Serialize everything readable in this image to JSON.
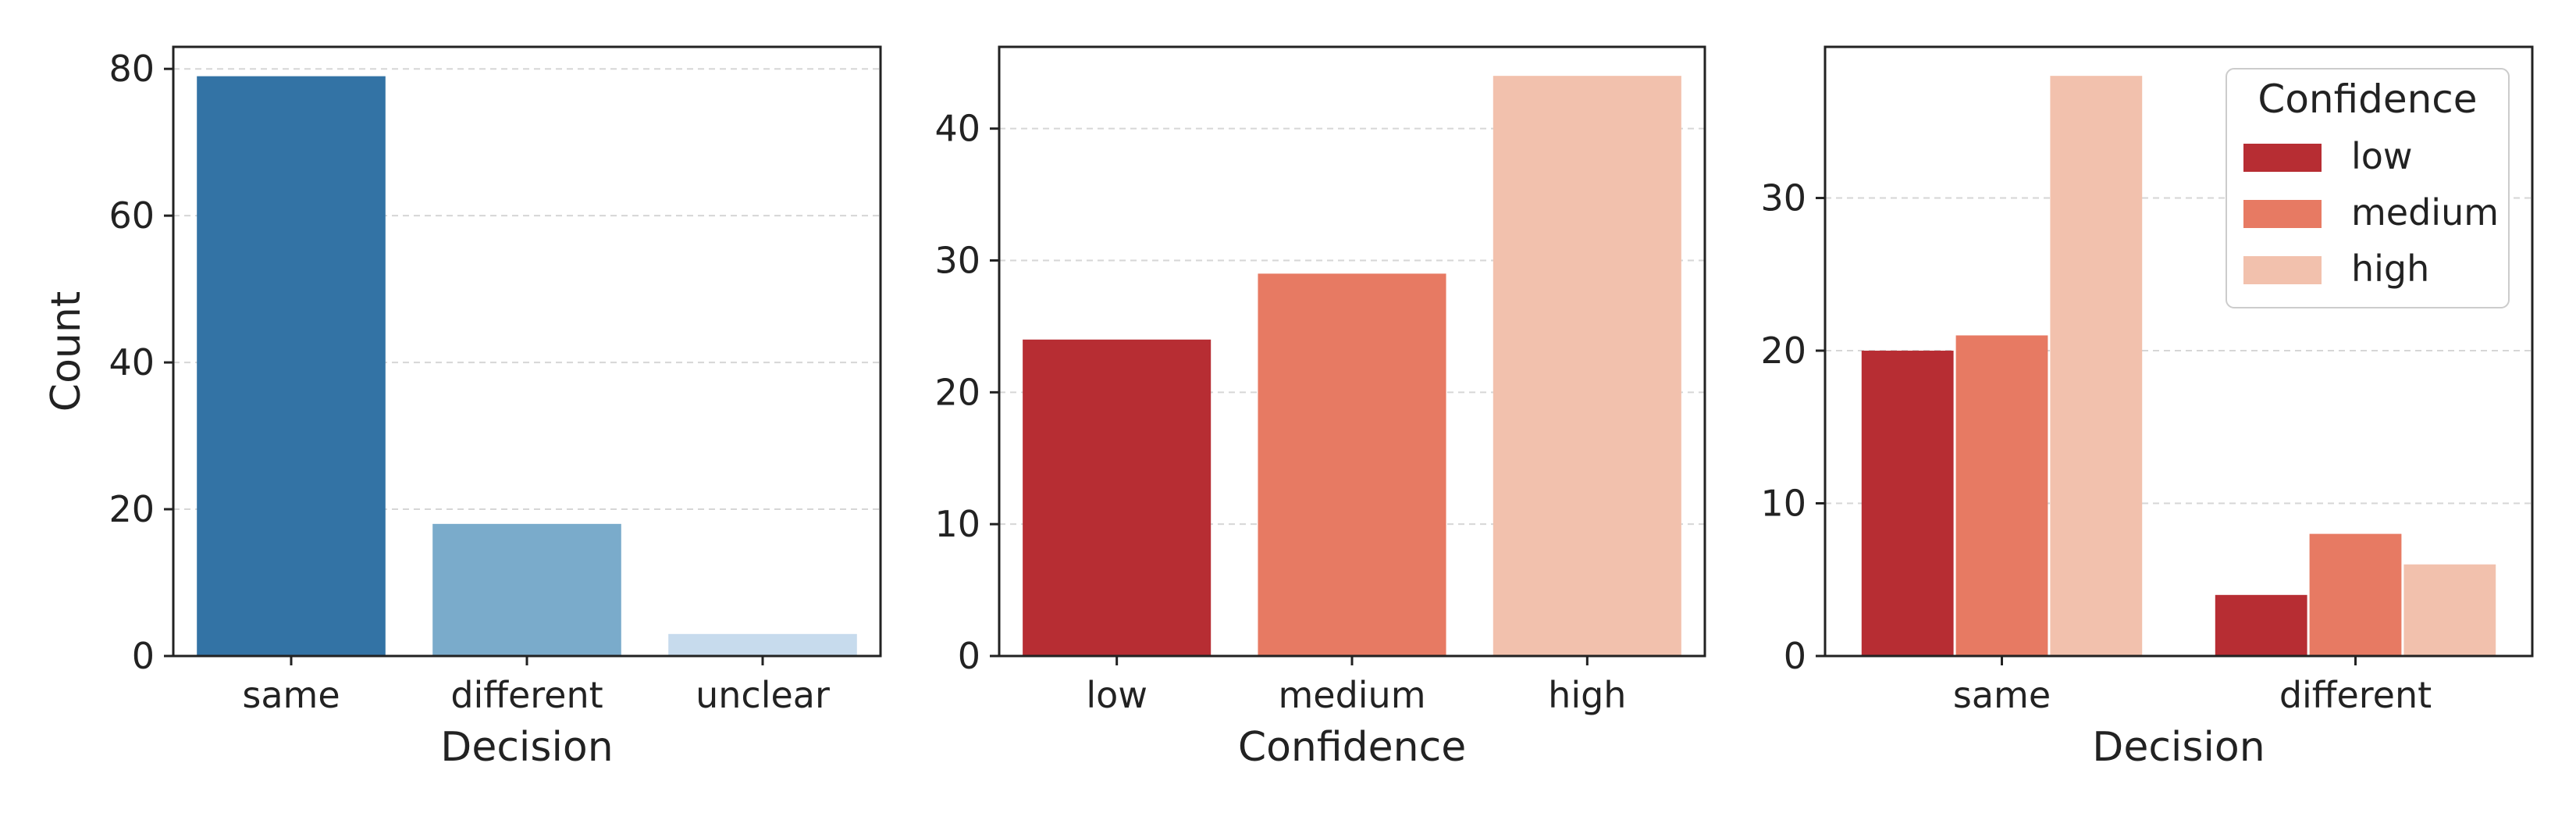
{
  "chart_data": [
    {
      "type": "bar",
      "categories": [
        "same",
        "different",
        "unclear"
      ],
      "values": [
        79,
        18,
        3
      ],
      "colors": [
        "#3373a5",
        "#7aabcb",
        "#c7dbed"
      ],
      "xlabel": "Decision",
      "ylabel": "Count",
      "ylim": [
        0,
        83
      ],
      "yticks": [
        0,
        20,
        40,
        60,
        80
      ],
      "grid": "horizontal dashed"
    },
    {
      "type": "bar",
      "categories": [
        "low",
        "medium",
        "high"
      ],
      "values": [
        24,
        29,
        44
      ],
      "colors": [
        "#b72d33",
        "#e77a63",
        "#f2c1ad"
      ],
      "xlabel": "Confidence",
      "ylabel": "",
      "ylim": [
        0,
        46.2
      ],
      "yticks": [
        0,
        10,
        20,
        30,
        40
      ],
      "grid": "horizontal dashed"
    },
    {
      "type": "bar",
      "categories": [
        "same",
        "different"
      ],
      "series": [
        {
          "name": "low",
          "values": [
            20,
            4
          ],
          "color": "#b72d33"
        },
        {
          "name": "medium",
          "values": [
            21,
            8
          ],
          "color": "#e77a63"
        },
        {
          "name": "high",
          "values": [
            38,
            6
          ],
          "color": "#f2c1ad"
        }
      ],
      "xlabel": "Decision",
      "ylabel": "",
      "ylim": [
        0,
        39.9
      ],
      "yticks": [
        0,
        10,
        20,
        30
      ],
      "legend": {
        "title": "Confidence",
        "placement": "top-right"
      },
      "grid": "horizontal dashed"
    }
  ]
}
